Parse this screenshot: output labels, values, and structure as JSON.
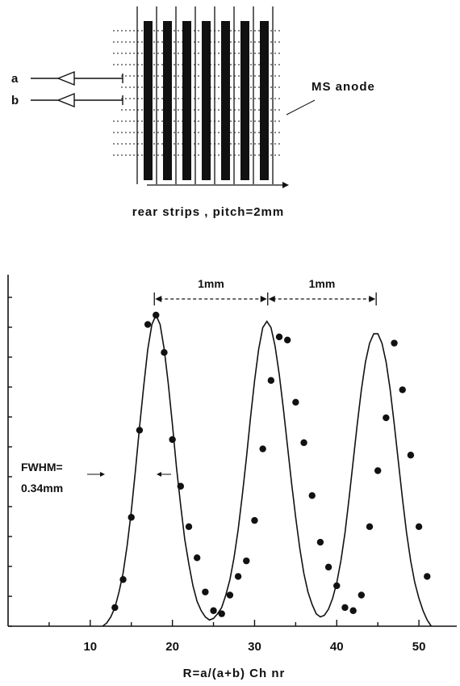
{
  "schematic": {
    "input_a_label": "a",
    "input_b_label": "b",
    "anode_label": "MS anode",
    "caption": "rear strips , pitch=2mm"
  },
  "annotations": {
    "separation_1": "1mm",
    "separation_2": "1mm",
    "fwhm_line1": "FWHM=",
    "fwhm_line2": "0.34mm"
  },
  "chart_data": {
    "type": "scatter",
    "title": "",
    "xlabel": "R=a/(a+b) Ch nr",
    "ylabel": "",
    "xlim": [
      0,
      55
    ],
    "ylim": [
      0,
      10
    ],
    "xticks": [
      10,
      20,
      30,
      40,
      50
    ],
    "xtick_labels": [
      "10",
      "20",
      "30",
      "40",
      "50"
    ],
    "grid": false,
    "series": [
      {
        "kind": "points",
        "x": [
          13,
          14,
          15,
          16,
          17,
          18,
          19,
          20,
          21,
          22,
          23,
          24,
          25,
          26,
          27,
          28,
          29,
          30,
          31,
          32,
          33,
          34,
          35,
          36,
          37,
          38,
          39,
          40,
          41,
          42,
          43,
          44,
          45,
          46,
          47,
          48,
          49,
          50,
          51
        ],
        "y": [
          0.6,
          1.5,
          3.5,
          6.3,
          9.7,
          10.0,
          8.8,
          6.0,
          4.5,
          3.2,
          2.2,
          1.1,
          0.5,
          0.4,
          1.0,
          1.6,
          2.1,
          3.4,
          5.7,
          7.9,
          9.3,
          9.2,
          7.2,
          5.9,
          4.2,
          2.7,
          1.9,
          1.3,
          0.6,
          0.5,
          1.0,
          3.2,
          5.0,
          6.7,
          9.1,
          7.6,
          5.5,
          3.2,
          1.6
        ]
      },
      {
        "kind": "curve",
        "x": [
          11.5,
          12,
          12.5,
          13,
          13.5,
          14,
          14.5,
          15,
          15.5,
          16,
          16.5,
          17,
          17.5,
          18,
          18.5,
          19,
          19.5,
          20,
          20.5,
          21,
          21.5,
          22,
          22.5,
          23,
          23.5,
          24,
          24.5,
          25,
          25.5,
          26,
          26.5,
          27,
          27.5,
          28,
          28.5,
          29,
          29.5,
          30,
          30.5,
          31,
          31.5,
          32,
          32.5,
          33,
          33.5,
          34,
          34.5,
          35,
          35.5,
          36,
          36.5,
          37,
          37.5,
          38,
          38.5,
          39,
          39.5,
          40,
          40.5,
          41,
          41.5,
          42,
          42.5,
          43,
          43.5,
          44,
          44.5,
          45,
          45.5,
          46,
          46.5,
          47,
          47.5,
          48,
          48.5,
          49,
          49.5,
          50,
          50.5,
          51,
          51.5
        ],
        "y": [
          0.0,
          0.1,
          0.3,
          0.6,
          1.1,
          1.7,
          2.6,
          3.7,
          5.0,
          6.4,
          7.7,
          8.9,
          9.7,
          10.0,
          9.7,
          8.9,
          7.8,
          6.5,
          5.1,
          3.9,
          2.8,
          2.0,
          1.3,
          0.8,
          0.5,
          0.3,
          0.2,
          0.25,
          0.4,
          0.6,
          1.0,
          1.5,
          2.2,
          3.1,
          4.2,
          5.4,
          6.7,
          7.9,
          8.9,
          9.6,
          9.8,
          9.6,
          9.0,
          8.1,
          7.0,
          5.8,
          4.6,
          3.5,
          2.5,
          1.7,
          1.1,
          0.7,
          0.4,
          0.3,
          0.35,
          0.55,
          0.9,
          1.4,
          2.1,
          3.0,
          4.1,
          5.3,
          6.5,
          7.6,
          8.5,
          9.1,
          9.4,
          9.4,
          9.1,
          8.5,
          7.6,
          6.5,
          5.3,
          4.1,
          3.0,
          2.1,
          1.4,
          0.9,
          0.5,
          0.2,
          0.0
        ]
      }
    ],
    "peaks_x": [
      17.8,
      31.6,
      44.8
    ]
  }
}
